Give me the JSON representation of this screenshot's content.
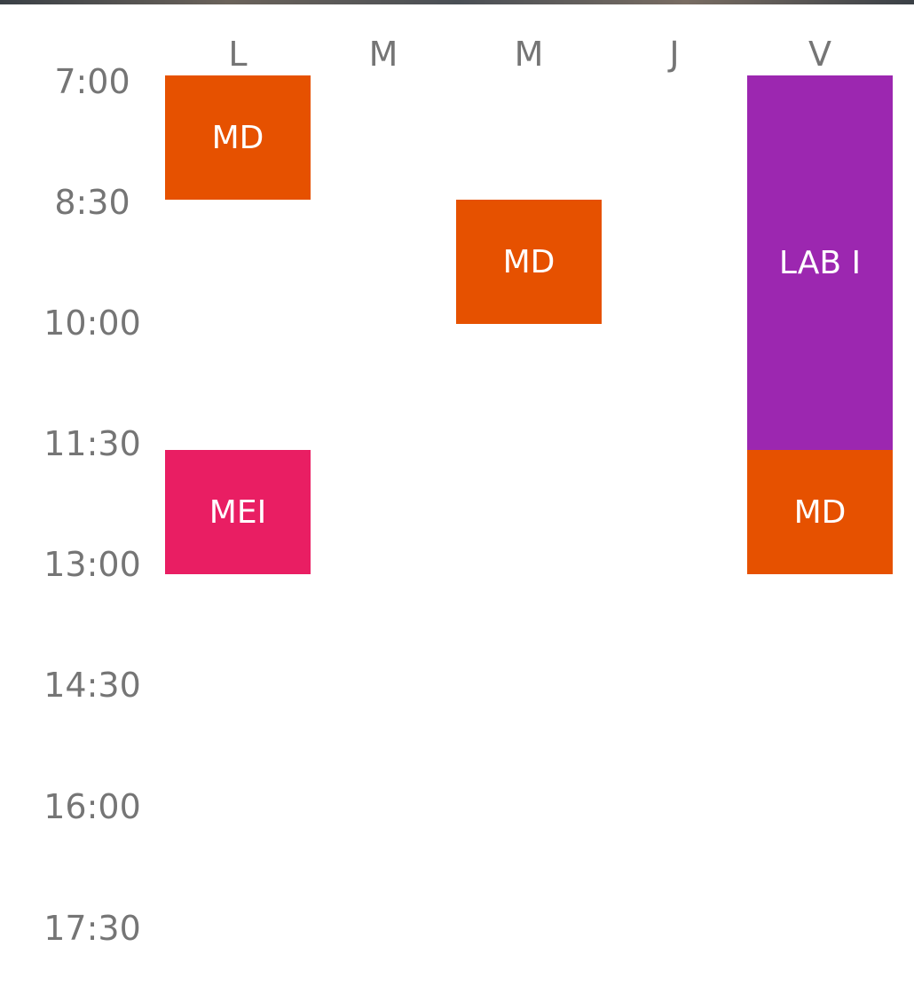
{
  "days": [
    "L",
    "M",
    "M",
    "J",
    "V"
  ],
  "times": [
    "7:00",
    "8:30",
    "10:00",
    "11:30",
    "13:00",
    "14:30",
    "16:00",
    "17:30"
  ],
  "colors": {
    "orange": "#e65100",
    "purple": "#9c27b0",
    "pink": "#e91e63"
  },
  "events": [
    {
      "label": "MD",
      "day": "L",
      "start": "7:00",
      "end": "8:30",
      "color": "#e65100"
    },
    {
      "label": "MEI",
      "day": "L",
      "start": "11:30",
      "end": "13:00",
      "color": "#e91e63"
    },
    {
      "label": "MD",
      "day": "M",
      "start": "8:30",
      "end": "10:00",
      "color": "#e65100"
    },
    {
      "label": "LAB I",
      "day": "V",
      "start": "7:00",
      "end": "11:30",
      "color": "#9c27b0"
    },
    {
      "label": "MD",
      "day": "V",
      "start": "11:30",
      "end": "13:00",
      "color": "#e65100"
    }
  ]
}
